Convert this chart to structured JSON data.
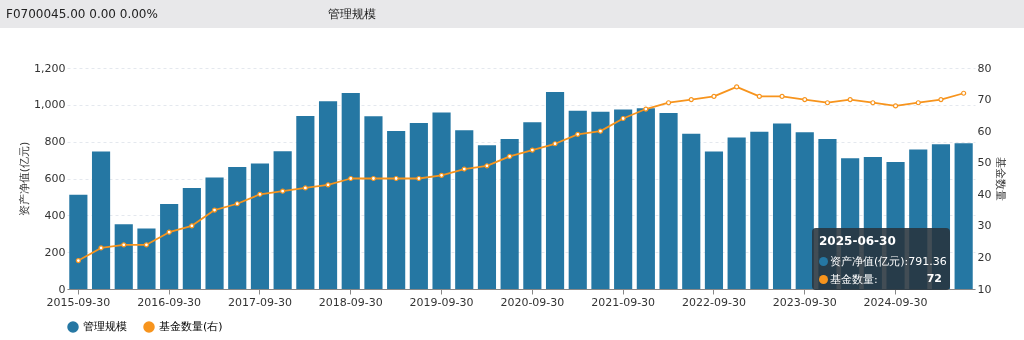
{
  "chart_data": {
    "type": "bar",
    "title": "管理规模",
    "subtitle": "F0700045.00  0.00  0.00%",
    "ylabel": "资产净值(亿元)",
    "y2label": "基金数量",
    "categories": [
      "2015-09-30",
      null,
      null,
      null,
      "2016-09-30",
      null,
      null,
      null,
      "2017-09-30",
      null,
      null,
      null,
      "2018-09-30",
      null,
      null,
      null,
      "2019-09-30",
      null,
      null,
      null,
      "2020-09-30",
      null,
      null,
      null,
      "2021-09-30",
      null,
      null,
      null,
      "2022-09-30",
      null,
      null,
      null,
      "2023-09-30",
      null,
      null,
      null,
      "2024-09-30",
      null,
      null,
      null
    ],
    "series": [
      {
        "name": "管理规模",
        "color": "#2577a3",
        "values": [
          512,
          746,
          351,
          329,
          462,
          548,
          606,
          662,
          682,
          748,
          939,
          1019,
          1064,
          938,
          858,
          901,
          959,
          862,
          780,
          814,
          905,
          1070,
          968,
          963,
          974,
          981,
          956,
          843,
          746,
          822,
          854,
          898,
          851,
          815,
          710,
          717,
          690,
          758,
          786,
          791.36
        ]
      },
      {
        "name": "基金数量(右)",
        "type": "line",
        "axis": "y2",
        "color": "#f7941d",
        "values": [
          19,
          23,
          24,
          24,
          28,
          30,
          35,
          37,
          40,
          41,
          42,
          43,
          45,
          45,
          45,
          45,
          46,
          48,
          49,
          52,
          54,
          56,
          59,
          60,
          64,
          67,
          69,
          70,
          71,
          74,
          71,
          71,
          70,
          69,
          70,
          69,
          68,
          69,
          70,
          72
        ]
      }
    ],
    "ylim": [
      0,
      1200
    ],
    "yticks": [
      0,
      200,
      400,
      600,
      800,
      {
        "value": 1000,
        "label": "1,000"
      },
      {
        "value": 1200,
        "label": "1,200"
      }
    ],
    "y2lim": [
      10,
      80
    ],
    "y2ticks": [
      10,
      20,
      30,
      40,
      50,
      60,
      70,
      80
    ],
    "grid": "y",
    "legend": "bottom",
    "marker": "circle",
    "line_style": "solid",
    "annotations": [
      "2025-06-30",
      "资产净值(亿元):791.36",
      "基金数量:",
      "72"
    ]
  }
}
